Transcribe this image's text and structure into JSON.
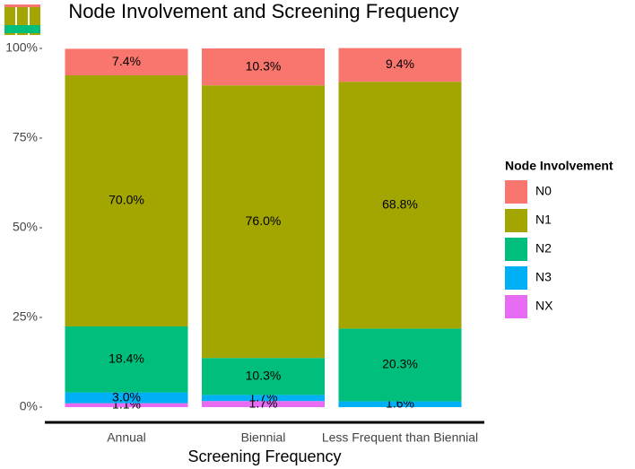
{
  "chart_data": {
    "type": "stacked_bar_100",
    "title": "Node Involvement and Screening Frequency",
    "x_label": "Screening Frequency",
    "legend_title": "Node Involvement",
    "categories": [
      "Annual",
      "Biennial",
      "Less Frequent than Biennial"
    ],
    "series": [
      {
        "name": "N0",
        "color": "#f8766d",
        "values": [
          7.4,
          10.3,
          9.4
        ],
        "value_labels": [
          "7.4%",
          "10.3%",
          "9.4%"
        ]
      },
      {
        "name": "N1",
        "color": "#a3a500",
        "values": [
          70.0,
          76.0,
          68.8
        ],
        "value_labels": [
          "70.0%",
          "76.0%",
          "68.8%"
        ]
      },
      {
        "name": "N2",
        "color": "#00bf7d",
        "values": [
          18.4,
          10.3,
          20.3
        ],
        "value_labels": [
          "18.4%",
          "10.3%",
          "20.3%"
        ]
      },
      {
        "name": "N3",
        "color": "#00b0f6",
        "values": [
          3.0,
          1.7,
          1.6
        ],
        "value_labels": [
          "3.0%",
          "1.7%",
          "1.6%"
        ]
      },
      {
        "name": "NX",
        "color": "#e76bf3",
        "values": [
          1.1,
          1.7,
          null
        ],
        "value_labels": [
          "1.1%",
          "1.7%",
          null
        ]
      }
    ],
    "ylim": [
      0,
      100
    ],
    "yticks": [
      {
        "value": 0,
        "label": "0%"
      },
      {
        "value": 25,
        "label": "25%"
      },
      {
        "value": 50,
        "label": "50%"
      },
      {
        "value": 75,
        "label": "75%"
      },
      {
        "value": 100,
        "label": "100%"
      }
    ],
    "grid": false,
    "legend_position": "right"
  }
}
